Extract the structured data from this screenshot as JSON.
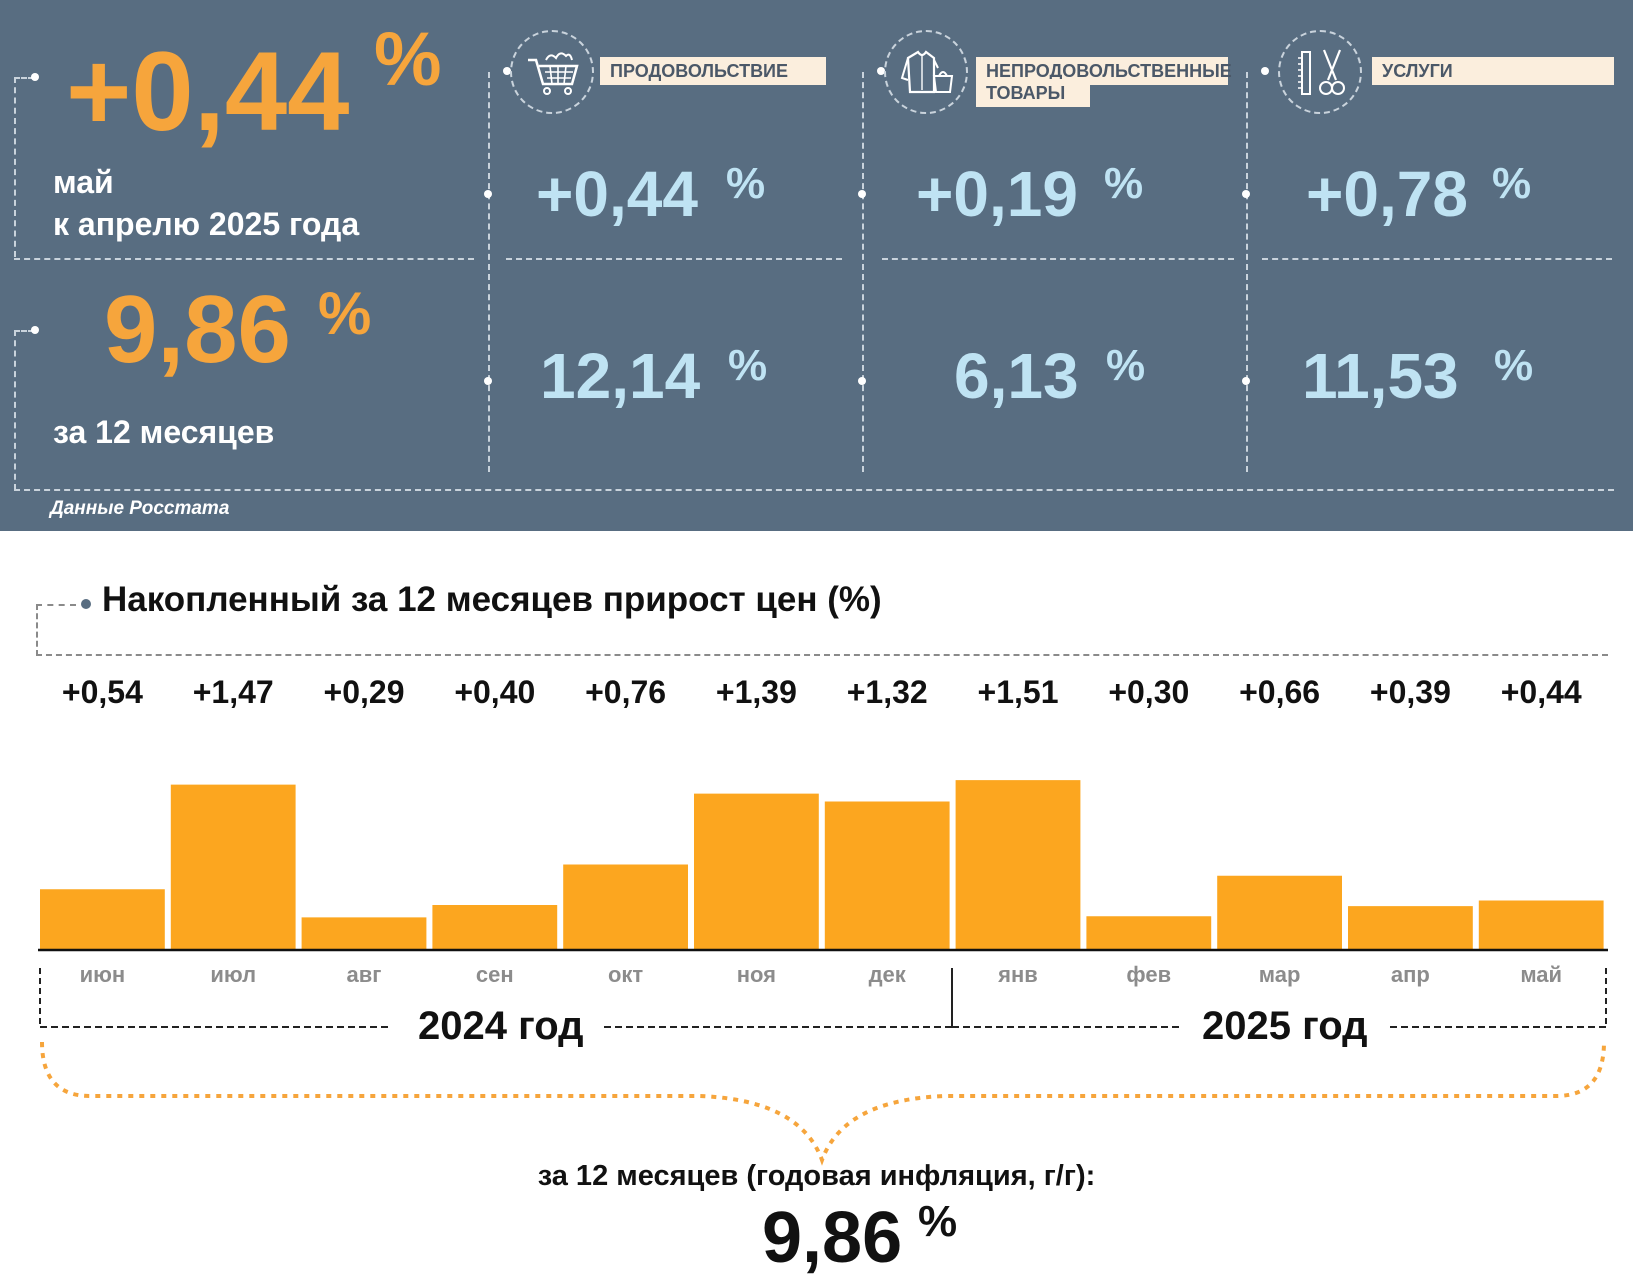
{
  "headline": {
    "mom_value": "+0,44",
    "mom_unit": "%",
    "mom_caption_line1": "май",
    "mom_caption_line2": "к апрелю 2025 года",
    "yoy_value": "9,86",
    "yoy_unit": "%",
    "yoy_caption": "за 12 месяцев"
  },
  "categories": [
    {
      "label": "ПРОДОВОЛЬСТВИЕ",
      "icon": "shopping-cart-icon",
      "mom": "+0,44",
      "yoy": "12,14",
      "unit": "%"
    },
    {
      "label_line1": "НЕПРОДОВОЛЬСТВЕННЫЕ",
      "label_line2": "ТОВАРЫ",
      "icon": "clothing-bag-icon",
      "mom": "+0,19",
      "yoy": "6,13",
      "unit": "%"
    },
    {
      "label": "УСЛУГИ",
      "icon": "comb-scissors-icon",
      "mom": "+0,78",
      "yoy": "11,53",
      "unit": "%"
    }
  ],
  "source_note": "Данные Росстата",
  "colors": {
    "panel": "#586d81",
    "orange": "#f6a53c",
    "bar": "#fca61f",
    "light_blue": "#bfe3f3",
    "label_bg": "#fbeedd"
  },
  "chart_data": {
    "type": "bar",
    "title": "Накопленный за 12 месяцев прирост цен (%)",
    "categories": [
      "июн",
      "июл",
      "авг",
      "сен",
      "окт",
      "ноя",
      "дек",
      "янв",
      "фев",
      "мар",
      "апр",
      "май"
    ],
    "values": [
      0.54,
      1.47,
      0.29,
      0.4,
      0.76,
      1.39,
      1.32,
      1.51,
      0.3,
      0.66,
      0.39,
      0.44
    ],
    "value_labels": [
      "+0,54",
      "+1,47",
      "+0,29",
      "+0,40",
      "+0,76",
      "+1,39",
      "+1,32",
      "+1,51",
      "+0,30",
      "+0,66",
      "+0,39",
      "+0,44"
    ],
    "groups": [
      {
        "label": "2024 год",
        "months": 7
      },
      {
        "label": "2025 год",
        "months": 5
      }
    ],
    "ylim": [
      0,
      1.6
    ],
    "grid": false,
    "summary_caption": "за 12 месяцев (годовая инфляция, г/г):",
    "summary_value": "9,86",
    "summary_unit": "%"
  }
}
